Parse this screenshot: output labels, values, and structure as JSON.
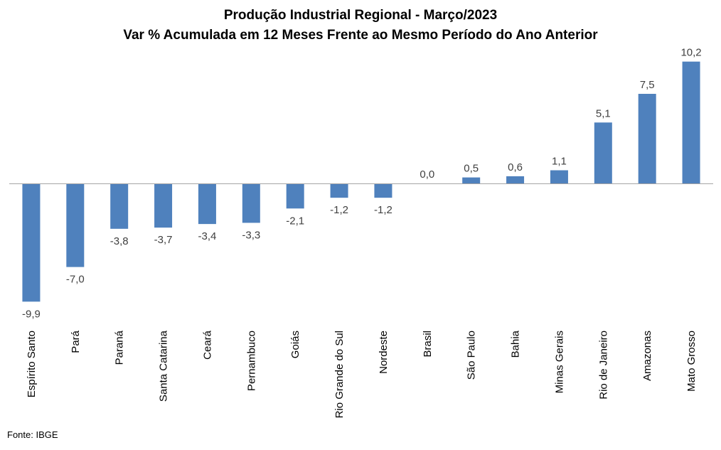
{
  "chart_data": {
    "type": "bar",
    "title": "Produção Industrial Regional - Março/2023",
    "subtitle": "Var % Acumulada em 12 Meses Frente ao Mesmo Período do Ano Anterior",
    "categories": [
      "Espírito Santo",
      "Pará",
      "Paraná",
      "Santa Catarina",
      "Ceará",
      "Pernambuco",
      "Goiás",
      "Rio Grande do Sul",
      "Nordeste",
      "Brasil",
      "São Paulo",
      "Bahia",
      "Minas Gerais",
      "Rio de Janeiro",
      "Amazonas",
      "Mato Grosso"
    ],
    "values": [
      -9.9,
      -7.0,
      -3.8,
      -3.7,
      -3.4,
      -3.3,
      -2.1,
      -1.2,
      -1.2,
      0.0,
      0.5,
      0.6,
      1.1,
      5.1,
      7.5,
      10.2
    ],
    "value_labels": [
      "-9,9",
      "-7,0",
      "-3,8",
      "-3,7",
      "-3,4",
      "-3,3",
      "-2,1",
      "-1,2",
      "-1,2",
      "0,0",
      "0,5",
      "0,6",
      "1,1",
      "5,1",
      "7,5",
      "10,2"
    ],
    "xlabel": "",
    "ylabel": "",
    "ylim": [
      -10.5,
      10.5
    ],
    "grid": false,
    "legend": "none",
    "bar_color": "#4f81bd"
  },
  "source": "Fonte: IBGE"
}
